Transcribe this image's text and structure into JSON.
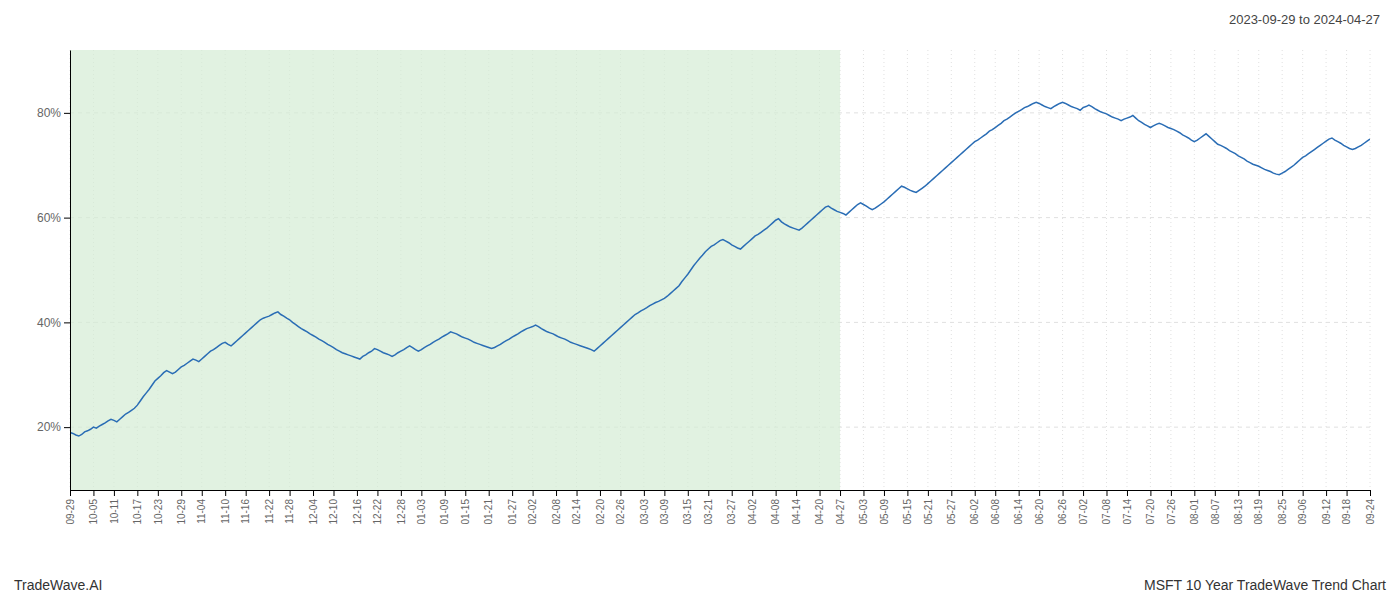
{
  "chart_data": {
    "type": "line",
    "title": "MSFT 10 Year TradeWave Trend Chart",
    "subtitle": "2023-09-29 to 2024-04-27",
    "annotations": [
      "TradeWave.AI"
    ],
    "color": "#2a6db5",
    "grid": true,
    "highlight": {
      "from": "09-29",
      "to": "04-27",
      "color": "#d4ecd4"
    },
    "ylim": [
      0.08,
      0.92
    ],
    "yticks": [
      {
        "value": 0.2,
        "label": "20%"
      },
      {
        "value": 0.4,
        "label": "40%"
      },
      {
        "value": 0.6,
        "label": "60%"
      },
      {
        "value": 0.8,
        "label": "80%"
      }
    ],
    "categories": [
      "09-29",
      null,
      null,
      null,
      null,
      null,
      null,
      null,
      "10-05",
      null,
      null,
      null,
      null,
      null,
      null,
      "10-11",
      null,
      null,
      null,
      null,
      null,
      null,
      null,
      "10-17",
      null,
      null,
      null,
      null,
      null,
      null,
      "10-23",
      null,
      null,
      null,
      null,
      null,
      null,
      null,
      "10-29",
      null,
      null,
      null,
      null,
      null,
      null,
      "11-04",
      null,
      null,
      null,
      null,
      null,
      null,
      null,
      "11-10",
      null,
      null,
      null,
      null,
      null,
      null,
      "11-16",
      null,
      null,
      null,
      null,
      null,
      null,
      null,
      "11-22",
      null,
      null,
      null,
      null,
      null,
      null,
      "11-28",
      null,
      null,
      null,
      null,
      null,
      null,
      null,
      "12-04",
      null,
      null,
      null,
      null,
      null,
      null,
      "12-10",
      null,
      null,
      null,
      null,
      null,
      null,
      null,
      "12-16",
      null,
      null,
      null,
      null,
      null,
      null,
      "12-22",
      null,
      null,
      null,
      null,
      null,
      null,
      null,
      "12-28",
      null,
      null,
      null,
      null,
      null,
      null,
      "01-03",
      null,
      null,
      null,
      null,
      null,
      null,
      null,
      "01-09",
      null,
      null,
      null,
      null,
      null,
      null,
      "01-15",
      null,
      null,
      null,
      null,
      null,
      null,
      null,
      "01-21",
      null,
      null,
      null,
      null,
      null,
      null,
      null,
      "01-27",
      null,
      null,
      null,
      null,
      null,
      null,
      "02-02",
      null,
      null,
      null,
      null,
      null,
      null,
      null,
      "02-08",
      null,
      null,
      null,
      null,
      null,
      null,
      "02-14",
      null,
      null,
      null,
      null,
      null,
      null,
      null,
      "02-20",
      null,
      null,
      null,
      null,
      null,
      null,
      "02-26",
      null,
      null,
      null,
      null,
      null,
      null,
      null,
      "03-03",
      null,
      null,
      null,
      null,
      null,
      null,
      "03-09",
      null,
      null,
      null,
      null,
      null,
      null,
      null,
      "03-15",
      null,
      null,
      null,
      null,
      null,
      null,
      "03-21",
      null,
      null,
      null,
      null,
      null,
      null,
      null,
      "03-27",
      null,
      null,
      null,
      null,
      null,
      null,
      "04-02",
      null,
      null,
      null,
      null,
      null,
      null,
      null,
      "04-08",
      null,
      null,
      null,
      null,
      null,
      null,
      "04-14",
      null,
      null,
      null,
      null,
      null,
      null,
      null,
      "04-20",
      null,
      null,
      null,
      null,
      null,
      null,
      "04-27",
      null,
      null,
      null,
      null,
      null,
      null,
      null,
      "05-03",
      null,
      null,
      null,
      null,
      null,
      null,
      "05-09",
      null,
      null,
      null,
      null,
      null,
      null,
      null,
      "05-15",
      null,
      null,
      null,
      null,
      null,
      null,
      "05-21",
      null,
      null,
      null,
      null,
      null,
      null,
      null,
      "05-27",
      null,
      null,
      null,
      null,
      null,
      null,
      null,
      "06-02",
      null,
      null,
      null,
      null,
      null,
      null,
      "06-08",
      null,
      null,
      null,
      null,
      null,
      null,
      null,
      "06-14",
      null,
      null,
      null,
      null,
      null,
      null,
      "06-20",
      null,
      null,
      null,
      null,
      null,
      null,
      null,
      "06-26",
      null,
      null,
      null,
      null,
      null,
      null,
      "07-02",
      null,
      null,
      null,
      null,
      null,
      null,
      null,
      "07-08",
      null,
      null,
      null,
      null,
      null,
      null,
      "07-14",
      null,
      null,
      null,
      null,
      null,
      null,
      null,
      "07-20",
      null,
      null,
      null,
      null,
      null,
      null,
      "07-26",
      null,
      null,
      null,
      null,
      null,
      null,
      null,
      "08-01",
      null,
      null,
      null,
      null,
      null,
      null,
      "08-07",
      null,
      null,
      null,
      null,
      null,
      null,
      null,
      "08-13",
      null,
      null,
      null,
      null,
      null,
      null,
      "08-19",
      null,
      null,
      null,
      null,
      null,
      null,
      null,
      "08-25",
      null,
      null,
      null,
      null,
      null,
      null,
      "09-06",
      null,
      null,
      null,
      null,
      null,
      null,
      null,
      "09-12",
      null,
      null,
      null,
      null,
      null,
      null,
      "09-18",
      null,
      null,
      null,
      null,
      null,
      null,
      null,
      "09-24"
    ],
    "values": [
      0.19,
      0.188,
      0.185,
      0.183,
      0.186,
      0.191,
      0.193,
      0.196,
      0.2,
      0.198,
      0.202,
      0.205,
      0.208,
      0.212,
      0.215,
      0.213,
      0.21,
      0.215,
      0.22,
      0.225,
      0.228,
      0.232,
      0.236,
      0.242,
      0.25,
      0.258,
      0.265,
      0.272,
      0.28,
      0.288,
      0.293,
      0.298,
      0.304,
      0.308,
      0.305,
      0.302,
      0.305,
      0.31,
      0.315,
      0.318,
      0.322,
      0.326,
      0.33,
      0.328,
      0.325,
      0.33,
      0.335,
      0.34,
      0.345,
      0.348,
      0.352,
      0.356,
      0.36,
      0.362,
      0.358,
      0.355,
      0.36,
      0.365,
      0.37,
      0.375,
      0.38,
      0.385,
      0.39,
      0.395,
      0.4,
      0.405,
      0.408,
      0.41,
      0.412,
      0.415,
      0.418,
      0.42,
      0.415,
      0.412,
      0.408,
      0.405,
      0.4,
      0.396,
      0.392,
      0.388,
      0.385,
      0.382,
      0.378,
      0.375,
      0.372,
      0.368,
      0.365,
      0.362,
      0.358,
      0.355,
      0.352,
      0.348,
      0.345,
      0.342,
      0.34,
      0.338,
      0.336,
      0.334,
      0.332,
      0.33,
      0.335,
      0.338,
      0.342,
      0.345,
      0.35,
      0.348,
      0.345,
      0.342,
      0.34,
      0.338,
      0.335,
      0.338,
      0.342,
      0.345,
      0.348,
      0.352,
      0.355,
      0.352,
      0.348,
      0.345,
      0.348,
      0.352,
      0.355,
      0.358,
      0.362,
      0.365,
      0.368,
      0.372,
      0.375,
      0.378,
      0.382,
      0.38,
      0.378,
      0.375,
      0.372,
      0.37,
      0.368,
      0.365,
      0.362,
      0.36,
      0.358,
      0.356,
      0.354,
      0.352,
      0.35,
      0.352,
      0.355,
      0.358,
      0.362,
      0.365,
      0.368,
      0.372,
      0.375,
      0.378,
      0.382,
      0.385,
      0.388,
      0.39,
      0.392,
      0.395,
      0.392,
      0.388,
      0.385,
      0.382,
      0.38,
      0.378,
      0.375,
      0.372,
      0.37,
      0.368,
      0.365,
      0.362,
      0.36,
      0.358,
      0.356,
      0.354,
      0.352,
      0.35,
      0.348,
      0.345,
      0.35,
      0.355,
      0.36,
      0.365,
      0.37,
      0.375,
      0.38,
      0.385,
      0.39,
      0.395,
      0.4,
      0.405,
      0.41,
      0.415,
      0.418,
      0.422,
      0.425,
      0.428,
      0.432,
      0.435,
      0.438,
      0.44,
      0.443,
      0.446,
      0.45,
      0.455,
      0.46,
      0.465,
      0.47,
      0.478,
      0.485,
      0.492,
      0.5,
      0.508,
      0.515,
      0.522,
      0.528,
      0.535,
      0.54,
      0.545,
      0.548,
      0.552,
      0.556,
      0.558,
      0.555,
      0.552,
      0.548,
      0.545,
      0.542,
      0.54,
      0.545,
      0.55,
      0.555,
      0.56,
      0.565,
      0.568,
      0.572,
      0.576,
      0.58,
      0.585,
      0.59,
      0.595,
      0.598,
      0.592,
      0.588,
      0.585,
      0.582,
      0.58,
      0.578,
      0.576,
      0.58,
      0.585,
      0.59,
      0.595,
      0.6,
      0.605,
      0.61,
      0.615,
      0.62,
      0.622,
      0.618,
      0.615,
      0.612,
      0.61,
      0.608,
      0.605,
      0.61,
      0.615,
      0.62,
      0.625,
      0.628,
      0.625,
      0.622,
      0.618,
      0.615,
      0.618,
      0.622,
      0.626,
      0.63,
      0.635,
      0.64,
      0.645,
      0.65,
      0.655,
      0.66,
      0.658,
      0.655,
      0.652,
      0.65,
      0.648,
      0.652,
      0.656,
      0.66,
      0.665,
      0.67,
      0.675,
      0.68,
      0.685,
      0.69,
      0.695,
      0.7,
      0.705,
      0.71,
      0.715,
      0.72,
      0.725,
      0.73,
      0.735,
      0.74,
      0.745,
      0.748,
      0.752,
      0.756,
      0.76,
      0.765,
      0.768,
      0.772,
      0.776,
      0.78,
      0.785,
      0.788,
      0.792,
      0.796,
      0.8,
      0.803,
      0.806,
      0.81,
      0.812,
      0.815,
      0.818,
      0.82,
      0.818,
      0.815,
      0.812,
      0.81,
      0.808,
      0.812,
      0.815,
      0.818,
      0.82,
      0.818,
      0.815,
      0.812,
      0.81,
      0.808,
      0.805,
      0.81,
      0.812,
      0.815,
      0.812,
      0.808,
      0.805,
      0.802,
      0.8,
      0.798,
      0.795,
      0.792,
      0.79,
      0.788,
      0.785,
      0.788,
      0.79,
      0.792,
      0.795,
      0.79,
      0.785,
      0.782,
      0.778,
      0.775,
      0.772,
      0.775,
      0.778,
      0.78,
      0.778,
      0.775,
      0.772,
      0.77,
      0.768,
      0.765,
      0.762,
      0.758,
      0.755,
      0.752,
      0.748,
      0.745,
      0.748,
      0.752,
      0.756,
      0.76,
      0.755,
      0.75,
      0.745,
      0.74,
      0.738,
      0.735,
      0.732,
      0.728,
      0.725,
      0.722,
      0.718,
      0.715,
      0.712,
      0.708,
      0.705,
      0.702,
      0.7,
      0.698,
      0.695,
      0.692,
      0.69,
      0.688,
      0.685,
      0.683,
      0.682,
      0.685,
      0.688,
      0.692,
      0.696,
      0.7,
      0.705,
      0.71,
      0.715,
      0.718,
      0.722,
      0.726,
      0.73,
      0.734,
      0.738,
      0.742,
      0.746,
      0.75,
      0.752,
      0.748,
      0.745,
      0.742,
      0.738,
      0.735,
      0.732,
      0.73,
      0.732,
      0.735,
      0.738,
      0.742,
      0.746,
      0.75
    ]
  }
}
